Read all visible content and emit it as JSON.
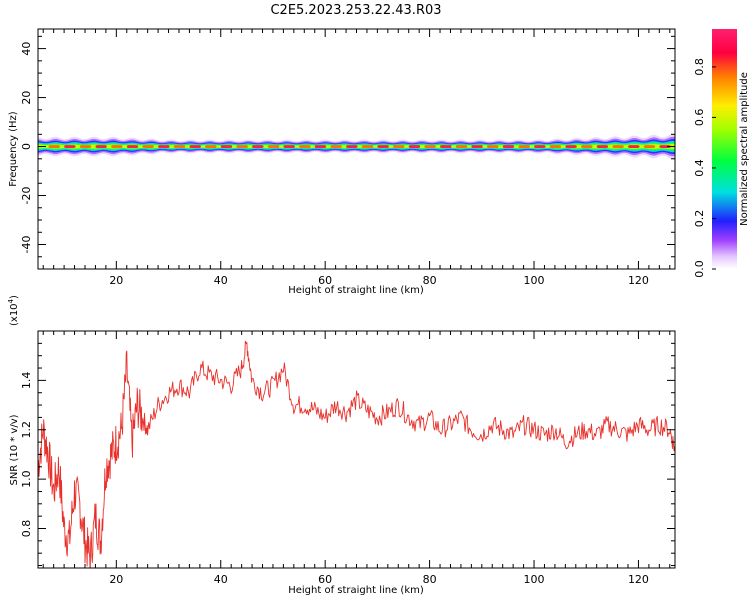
{
  "title": "C2E5.2023.253.22.43.R03",
  "chart_data": [
    {
      "type": "heatmap",
      "xlabel": "Height of straight line (km)",
      "ylabel": "Frequency (Hz)",
      "xlim": [
        5,
        127
      ],
      "ylim": [
        -50,
        48
      ],
      "xticks": [
        20,
        40,
        60,
        80,
        100,
        120
      ],
      "yticks": [
        -40,
        -20,
        0,
        20,
        40
      ],
      "colorbar": {
        "label": "Normalized spectral amplitude",
        "range": [
          0.0,
          0.95
        ],
        "ticks": [
          0.0,
          0.2,
          0.4,
          0.6,
          0.8
        ],
        "tick_labels": [
          "0.0",
          "0.2",
          "0.4",
          "0.6",
          "0.8"
        ]
      },
      "band": {
        "center_hz": 0,
        "peak_amplitude": 0.9,
        "half_width_hz_low_amplitude": [
          [
            5,
            3.5
          ],
          [
            20,
            3.5
          ],
          [
            30,
            2.5
          ],
          [
            100,
            2.5
          ],
          [
            127,
            4.5
          ]
        ]
      }
    },
    {
      "type": "line",
      "xlabel": "Height of straight line (km)",
      "ylabel": "SNR (10 * v/v)",
      "y_multiplier_label": "(x10",
      "y_multiplier_exponent": "4",
      "y_multiplier_suffix": ")",
      "xlim": [
        5,
        127
      ],
      "ylim": [
        0.64,
        1.6
      ],
      "xticks": [
        20,
        40,
        60,
        80,
        100,
        120
      ],
      "yticks": [
        0.8,
        1.0,
        1.2,
        1.4
      ],
      "ytick_labels": [
        "0.8",
        "1.0",
        "1.2",
        "1.4"
      ],
      "line_color": "#e8302a",
      "x": [
        5,
        6,
        7,
        8,
        9,
        10,
        11,
        12,
        13,
        14,
        15,
        16,
        17,
        18,
        19,
        20,
        21,
        22,
        23,
        24,
        25,
        26,
        28,
        30,
        32,
        34,
        36,
        38,
        40,
        42,
        44,
        45,
        46,
        48,
        50,
        52,
        54,
        56,
        58,
        60,
        62,
        64,
        66,
        68,
        70,
        72,
        74,
        76,
        78,
        80,
        82,
        84,
        86,
        88,
        90,
        92,
        94,
        96,
        98,
        100,
        102,
        104,
        106,
        108,
        110,
        112,
        114,
        116,
        118,
        120,
        122,
        124,
        126,
        127
      ],
      "y": [
        1.05,
        1.2,
        1.1,
        0.95,
        1.05,
        0.8,
        0.75,
        0.95,
        0.9,
        0.75,
        0.68,
        0.85,
        0.75,
        1.05,
        1.1,
        1.15,
        1.2,
        1.45,
        1.15,
        1.3,
        1.25,
        1.2,
        1.3,
        1.35,
        1.38,
        1.35,
        1.45,
        1.42,
        1.4,
        1.38,
        1.45,
        1.55,
        1.4,
        1.35,
        1.38,
        1.45,
        1.3,
        1.3,
        1.28,
        1.25,
        1.3,
        1.27,
        1.32,
        1.28,
        1.25,
        1.27,
        1.3,
        1.25,
        1.22,
        1.25,
        1.2,
        1.22,
        1.25,
        1.2,
        1.18,
        1.22,
        1.2,
        1.18,
        1.22,
        1.2,
        1.18,
        1.2,
        1.15,
        1.18,
        1.2,
        1.18,
        1.22,
        1.2,
        1.18,
        1.22,
        1.2,
        1.22,
        1.2,
        1.12
      ]
    }
  ]
}
